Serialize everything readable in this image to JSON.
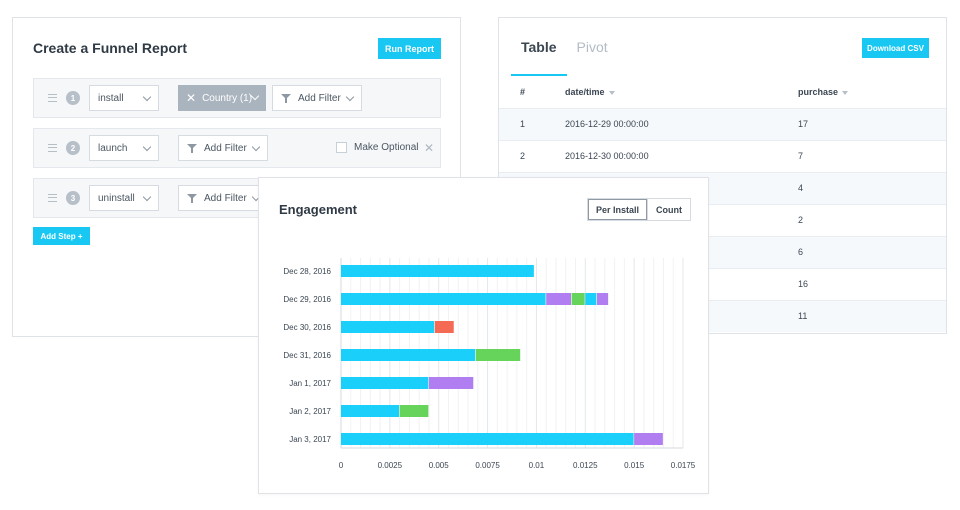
{
  "funnel": {
    "title": "Create a Funnel Report",
    "run_label": "Run Report",
    "steps": [
      {
        "num": "1",
        "event": "install",
        "filter_chip": "Country (1)",
        "filter_label": "Add Filter"
      },
      {
        "num": "2",
        "event": "launch",
        "filter_label": "Add Filter",
        "optional_label": "Make Optional"
      },
      {
        "num": "3",
        "event": "uninstall",
        "filter_label": "Add Filter"
      }
    ],
    "add_step_label": "Add Step  +"
  },
  "table": {
    "tabs": [
      {
        "label": "Table"
      },
      {
        "label": "Pivot"
      }
    ],
    "download_label": "Download CSV",
    "headers": {
      "idx": "#",
      "date": "date/time",
      "value": "purchase"
    },
    "rows": [
      {
        "idx": "1",
        "date": "2016-12-29 00:00:00",
        "value": "17"
      },
      {
        "idx": "2",
        "date": "2016-12-30 00:00:00",
        "value": "7"
      },
      {
        "idx": "",
        "date": "",
        "value": "4"
      },
      {
        "idx": "",
        "date": "",
        "value": "2"
      },
      {
        "idx": "",
        "date": "",
        "value": "6"
      },
      {
        "idx": "",
        "date": "",
        "value": "16"
      },
      {
        "idx": "",
        "date": "",
        "value": "11"
      }
    ]
  },
  "engagement": {
    "title": "Engagement",
    "toggle": {
      "per_install": "Per Install",
      "count": "Count"
    }
  },
  "colors": {
    "accent": "#18c7f2",
    "blue": "#1ad0fb",
    "purple": "#b07ef0",
    "green": "#66d45a",
    "red": "#f56a55"
  },
  "chart_data": {
    "type": "bar",
    "orientation": "horizontal",
    "stacked": true,
    "title": "Engagement",
    "categories": [
      "Dec 28, 2016",
      "Dec 29, 2016",
      "Dec 30, 2016",
      "Dec 31, 2016",
      "Jan 1, 2017",
      "Jan 2, 2017",
      "Jan 3, 2017"
    ],
    "segments": [
      [
        {
          "value": 0.0099,
          "color": "blue"
        }
      ],
      [
        {
          "value": 0.0105,
          "color": "blue"
        },
        {
          "value": 0.0013,
          "color": "purple"
        },
        {
          "value": 0.0007,
          "color": "green"
        },
        {
          "value": 0.0006,
          "color": "blue"
        },
        {
          "value": 0.0006,
          "color": "purple"
        }
      ],
      [
        {
          "value": 0.0048,
          "color": "blue"
        },
        {
          "value": 0.001,
          "color": "red"
        }
      ],
      [
        {
          "value": 0.0069,
          "color": "blue"
        },
        {
          "value": 0.0023,
          "color": "green"
        }
      ],
      [
        {
          "value": 0.0045,
          "color": "blue"
        },
        {
          "value": 0.0023,
          "color": "purple"
        }
      ],
      [
        {
          "value": 0.003,
          "color": "blue"
        },
        {
          "value": 0.0015,
          "color": "green"
        }
      ],
      [
        {
          "value": 0.015,
          "color": "blue"
        },
        {
          "value": 0.0015,
          "color": "purple"
        }
      ]
    ],
    "xlim": [
      0,
      0.0175
    ],
    "xticks": [
      "0",
      "0.0025",
      "0.005",
      "0.0075",
      "0.01",
      "0.0125",
      "0.015",
      "0.0175"
    ],
    "grid": true
  }
}
